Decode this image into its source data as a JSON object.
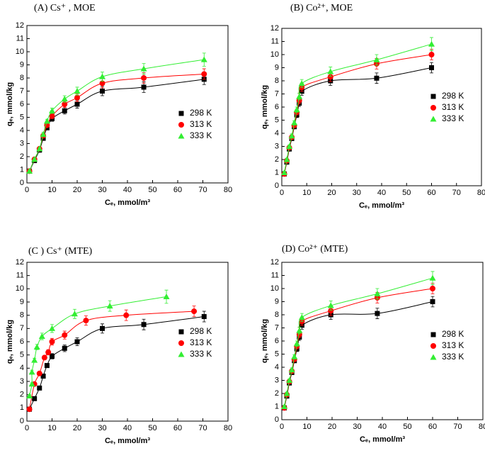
{
  "chart_data": [
    {
      "type": "scatter",
      "title": "(A) Cs⁺ , MOE",
      "x_label": "Cₑ, mmol/m³",
      "y_label": "qₑ, mmol/kg",
      "xlim": [
        0,
        80
      ],
      "ylim": [
        0,
        12
      ],
      "xticks": [
        0,
        10,
        20,
        30,
        40,
        50,
        60,
        70,
        80
      ],
      "yticks": [
        0,
        1,
        2,
        3,
        4,
        5,
        6,
        7,
        8,
        9,
        10,
        11,
        12
      ],
      "legend": "right",
      "series": [
        {
          "name": "298 K",
          "color": "#000000",
          "marker": "square",
          "x": [
            1,
            3,
            5,
            6.5,
            8,
            10,
            15,
            20,
            30,
            46.5,
            70.5
          ],
          "values": [
            0.9,
            1.7,
            2.5,
            3.4,
            4.2,
            4.9,
            5.5,
            6.0,
            7.0,
            7.3,
            7.9
          ],
          "errors": [
            0.1,
            0.1,
            0.1,
            0.15,
            0.15,
            0.2,
            0.25,
            0.3,
            0.35,
            0.4,
            0.4
          ]
        },
        {
          "name": "313 K",
          "color": "#ff0000",
          "marker": "circle",
          "x": [
            1,
            3,
            5,
            6.5,
            8,
            10,
            15,
            20,
            30,
            46.5,
            70.5
          ],
          "values": [
            0.9,
            1.8,
            2.6,
            3.6,
            4.4,
            5.1,
            6.0,
            6.5,
            7.6,
            8.0,
            8.3
          ],
          "errors": [
            0.1,
            0.1,
            0.1,
            0.15,
            0.15,
            0.2,
            0.25,
            0.3,
            0.35,
            0.4,
            0.4
          ]
        },
        {
          "name": "333 K",
          "color": "#33ee33",
          "marker": "triangle",
          "x": [
            1,
            3,
            5,
            6.5,
            8,
            10,
            15,
            20,
            30,
            46.5,
            70.5
          ],
          "values": [
            0.9,
            1.8,
            2.6,
            3.7,
            4.7,
            5.5,
            6.4,
            7.0,
            8.1,
            8.7,
            9.4
          ],
          "errors": [
            0.1,
            0.1,
            0.1,
            0.15,
            0.15,
            0.2,
            0.25,
            0.3,
            0.35,
            0.4,
            0.5
          ]
        }
      ]
    },
    {
      "type": "scatter",
      "title": "(B) Co²⁺, MOE",
      "x_label": "Cₑ, mmol/m³",
      "y_label": "qₑ, mmol/kg",
      "xlim": [
        0,
        80
      ],
      "ylim": [
        0,
        12
      ],
      "xticks": [
        0,
        10,
        20,
        30,
        40,
        50,
        60,
        70,
        80
      ],
      "yticks": [
        0,
        1,
        2,
        3,
        4,
        5,
        6,
        7,
        8,
        9,
        10,
        11,
        12
      ],
      "legend": "right",
      "series": [
        {
          "name": "298 K",
          "color": "#000000",
          "marker": "square",
          "x": [
            1,
            2,
            3,
            4,
            5,
            6,
            7,
            8,
            19.5,
            38,
            60
          ],
          "values": [
            0.9,
            1.8,
            2.8,
            3.6,
            4.5,
            5.4,
            6.3,
            7.2,
            8.0,
            8.2,
            9.0
          ],
          "errors": [
            0.1,
            0.1,
            0.1,
            0.15,
            0.15,
            0.2,
            0.25,
            0.3,
            0.35,
            0.4,
            0.4
          ]
        },
        {
          "name": "313 K",
          "color": "#ff0000",
          "marker": "circle",
          "x": [
            1,
            2,
            3,
            4,
            5,
            6,
            7,
            8,
            19.5,
            38,
            60
          ],
          "values": [
            0.9,
            1.9,
            2.9,
            3.7,
            4.6,
            5.6,
            6.5,
            7.5,
            8.3,
            9.3,
            10.0
          ],
          "errors": [
            0.1,
            0.1,
            0.1,
            0.15,
            0.15,
            0.2,
            0.25,
            0.3,
            0.35,
            0.4,
            0.4
          ]
        },
        {
          "name": "333 K",
          "color": "#33ee33",
          "marker": "triangle",
          "x": [
            1,
            2,
            3,
            4,
            5,
            6,
            7,
            8,
            19.5,
            38,
            60
          ],
          "values": [
            1.0,
            2.0,
            3.0,
            3.8,
            4.8,
            5.8,
            6.8,
            7.8,
            8.7,
            9.6,
            10.8
          ],
          "errors": [
            0.1,
            0.1,
            0.1,
            0.15,
            0.15,
            0.2,
            0.25,
            0.3,
            0.35,
            0.4,
            0.5
          ]
        }
      ]
    },
    {
      "type": "scatter",
      "title": "(C ) Cs⁺ (MTE)",
      "x_label": "Cₑ, mmol/m³",
      "y_label": "qₑ, mmol/kg",
      "xlim": [
        0,
        80
      ],
      "ylim": [
        0,
        12
      ],
      "xticks": [
        0,
        10,
        20,
        30,
        40,
        50,
        60,
        70,
        80
      ],
      "yticks": [
        0,
        1,
        2,
        3,
        4,
        5,
        6,
        7,
        8,
        9,
        10,
        11,
        12
      ],
      "legend": "right",
      "series": [
        {
          "name": "298 K",
          "color": "#000000",
          "marker": "square",
          "x": [
            1,
            3,
            5,
            6.5,
            8,
            10,
            15,
            20,
            30,
            46.5,
            70.5
          ],
          "values": [
            0.9,
            1.7,
            2.5,
            3.4,
            4.2,
            4.9,
            5.5,
            6.0,
            7.0,
            7.3,
            7.9
          ],
          "errors": [
            0.1,
            0.1,
            0.1,
            0.15,
            0.15,
            0.2,
            0.25,
            0.3,
            0.35,
            0.4,
            0.4
          ]
        },
        {
          "name": "313 K",
          "color": "#ff0000",
          "marker": "circle",
          "x": [
            1,
            3,
            5,
            7,
            8.5,
            10,
            15,
            23.5,
            39.5,
            66.5
          ],
          "values": [
            0.9,
            2.8,
            3.6,
            4.8,
            5.2,
            6.0,
            6.5,
            7.6,
            8.0,
            8.3
          ],
          "errors": [
            0.1,
            0.1,
            0.15,
            0.15,
            0.2,
            0.25,
            0.3,
            0.35,
            0.4,
            0.4
          ]
        },
        {
          "name": "333 K",
          "color": "#33ee33",
          "marker": "triangle",
          "x": [
            1,
            2,
            2,
            3,
            4,
            6,
            10,
            19,
            33,
            55.5
          ],
          "values": [
            1.9,
            2.8,
            3.7,
            4.6,
            5.6,
            6.4,
            7.0,
            8.1,
            8.7,
            9.4
          ],
          "errors": [
            0.1,
            0.1,
            0.15,
            0.15,
            0.2,
            0.25,
            0.3,
            0.35,
            0.4,
            0.5
          ]
        }
      ]
    },
    {
      "type": "scatter",
      "title": "(D) Co²⁺ (MTE)",
      "x_label": "Cₑ, mmol/m³",
      "y_label": "qₑ, mmol/kg",
      "xlim": [
        0,
        80
      ],
      "ylim": [
        0,
        12
      ],
      "xticks": [
        0,
        10,
        20,
        30,
        40,
        50,
        60,
        70,
        80
      ],
      "yticks": [
        0,
        1,
        2,
        3,
        4,
        5,
        6,
        7,
        8,
        9,
        10,
        11,
        12
      ],
      "legend": "right",
      "series": [
        {
          "name": "298 K",
          "color": "#000000",
          "marker": "square",
          "x": [
            1,
            2,
            3,
            4,
            5,
            6,
            7,
            8,
            19.5,
            38,
            60
          ],
          "values": [
            0.9,
            1.8,
            2.8,
            3.6,
            4.5,
            5.4,
            6.3,
            7.2,
            8.0,
            8.1,
            9.0
          ],
          "errors": [
            0.1,
            0.1,
            0.1,
            0.15,
            0.15,
            0.2,
            0.25,
            0.3,
            0.35,
            0.4,
            0.4
          ]
        },
        {
          "name": "313 K",
          "color": "#ff0000",
          "marker": "circle",
          "x": [
            1,
            2,
            3,
            4,
            5,
            6,
            7,
            8,
            19.5,
            38,
            60
          ],
          "values": [
            0.9,
            1.9,
            2.9,
            3.7,
            4.6,
            5.6,
            6.5,
            7.5,
            8.3,
            9.3,
            10.0
          ],
          "errors": [
            0.1,
            0.1,
            0.1,
            0.15,
            0.15,
            0.2,
            0.25,
            0.3,
            0.35,
            0.4,
            0.4
          ]
        },
        {
          "name": "333 K",
          "color": "#33ee33",
          "marker": "triangle",
          "x": [
            1,
            2,
            3,
            4,
            5,
            6,
            7,
            8,
            19.5,
            38,
            60
          ],
          "values": [
            1.0,
            2.0,
            3.0,
            3.8,
            4.8,
            5.8,
            6.8,
            7.8,
            8.7,
            9.6,
            10.8
          ],
          "errors": [
            0.1,
            0.1,
            0.1,
            0.15,
            0.15,
            0.2,
            0.25,
            0.3,
            0.35,
            0.4,
            0.5
          ]
        }
      ]
    }
  ]
}
